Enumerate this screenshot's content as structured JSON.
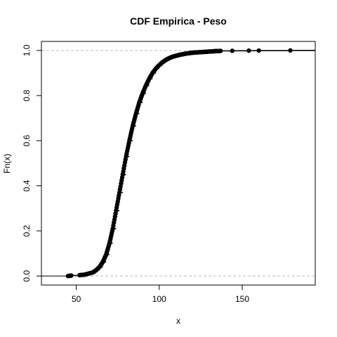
{
  "chart_data": {
    "type": "line",
    "title": "CDF Empirica - Peso",
    "xlabel": "x",
    "ylabel": "Fn(x)",
    "xlim": [
      29,
      194
    ],
    "ylim": [
      -0.04,
      1.04
    ],
    "x_ticks": [
      50,
      100,
      150
    ],
    "x_tick_labels": [
      "50",
      "100",
      "150"
    ],
    "y_ticks": [
      0.0,
      0.2,
      0.4,
      0.6,
      0.8,
      1.0
    ],
    "y_tick_labels": [
      "0.0",
      "0.2",
      "0.4",
      "0.6",
      "0.8",
      "1.0"
    ],
    "reference_lines_y": [
      0,
      1
    ],
    "grid": false,
    "point_color": "#000000",
    "reference_line_color": "#bebebe",
    "x": [
      45,
      47,
      52,
      55,
      57,
      60,
      62,
      64,
      66,
      68,
      70,
      72,
      74,
      76,
      78,
      80,
      82,
      84,
      86,
      88,
      90,
      92,
      94,
      96,
      98,
      100,
      102,
      104,
      106,
      108,
      110,
      112,
      114,
      116,
      118,
      120,
      122,
      124,
      126,
      128,
      130,
      132,
      134,
      137,
      144,
      154,
      160,
      179
    ],
    "y": [
      0.0,
      0.002,
      0.004,
      0.006,
      0.01,
      0.016,
      0.026,
      0.04,
      0.062,
      0.095,
      0.145,
      0.21,
      0.29,
      0.37,
      0.45,
      0.53,
      0.6,
      0.665,
      0.72,
      0.77,
      0.81,
      0.845,
      0.875,
      0.9,
      0.92,
      0.935,
      0.948,
      0.958,
      0.966,
      0.972,
      0.976,
      0.98,
      0.983,
      0.986,
      0.988,
      0.99,
      0.991,
      0.992,
      0.993,
      0.994,
      0.995,
      0.996,
      0.997,
      0.998,
      0.9985,
      0.999,
      0.9995,
      1.0
    ]
  }
}
